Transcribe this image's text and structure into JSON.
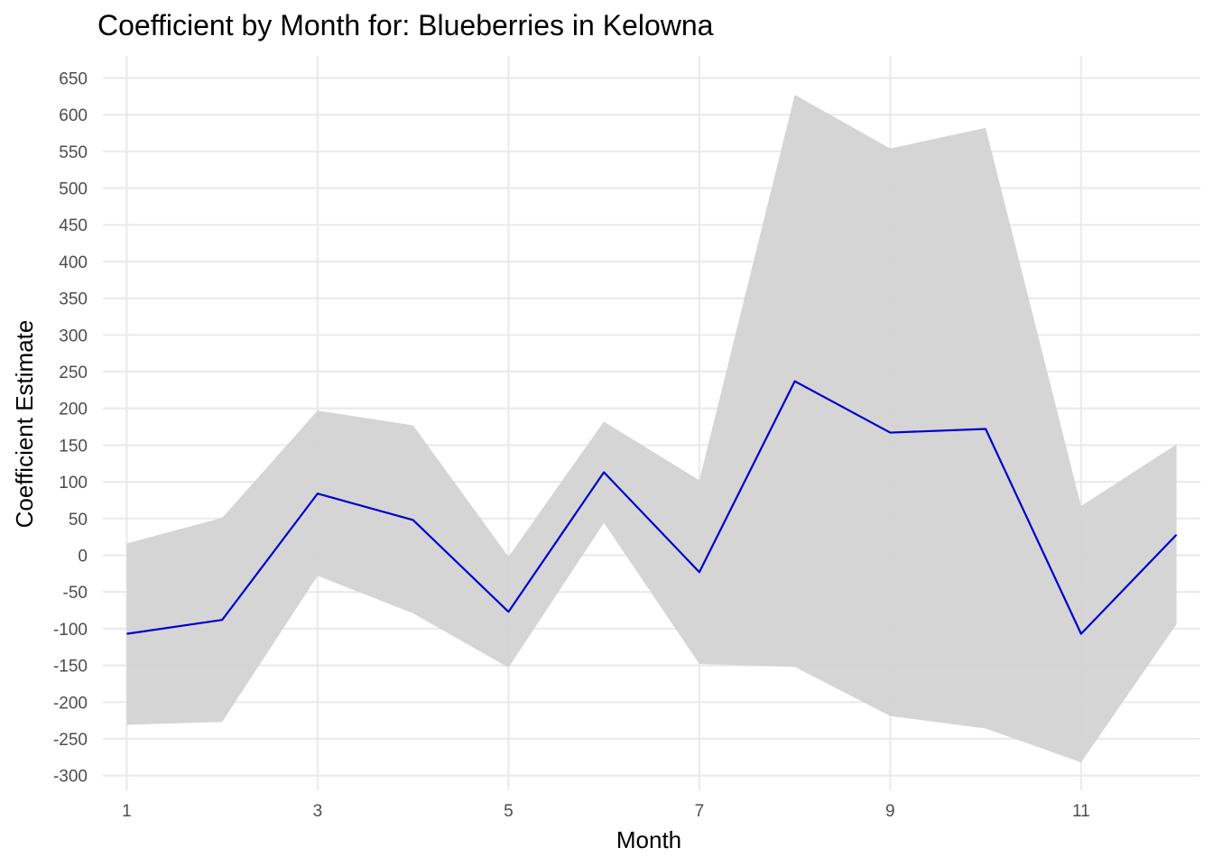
{
  "chart_data": {
    "type": "line",
    "title": "Coefficient by Month for: Blueberries in Kelowna",
    "xlabel": "Month",
    "ylabel": "Coefficient Estimate",
    "x": [
      1,
      2,
      3,
      4,
      5,
      6,
      7,
      8,
      9,
      10,
      11,
      12
    ],
    "xticks": [
      "1",
      "3",
      "5",
      "7",
      "9",
      "11"
    ],
    "yticks": [
      "650",
      "600",
      "550",
      "500",
      "450",
      "400",
      "350",
      "300",
      "250",
      "200",
      "150",
      "100",
      "50",
      "0",
      "-50",
      "-100",
      "-150",
      "-200",
      "-250",
      "-300"
    ],
    "xlim": [
      0.75,
      12.25
    ],
    "ylim": [
      -320,
      680
    ],
    "grid": true,
    "series": [
      {
        "values": [
          -107,
          -88,
          84,
          48,
          -77,
          113,
          -23,
          237,
          167,
          172,
          -107,
          28
        ],
        "color": "#0000cd"
      }
    ],
    "band": {
      "upper": [
        16,
        51,
        197,
        177,
        -2,
        182,
        102,
        627,
        554,
        582,
        67,
        151
      ],
      "lower": [
        -231,
        -227,
        -28,
        -79,
        -153,
        44,
        -148,
        -152,
        -219,
        -236,
        -282,
        -94
      ],
      "color": "#d3d3d3"
    }
  }
}
